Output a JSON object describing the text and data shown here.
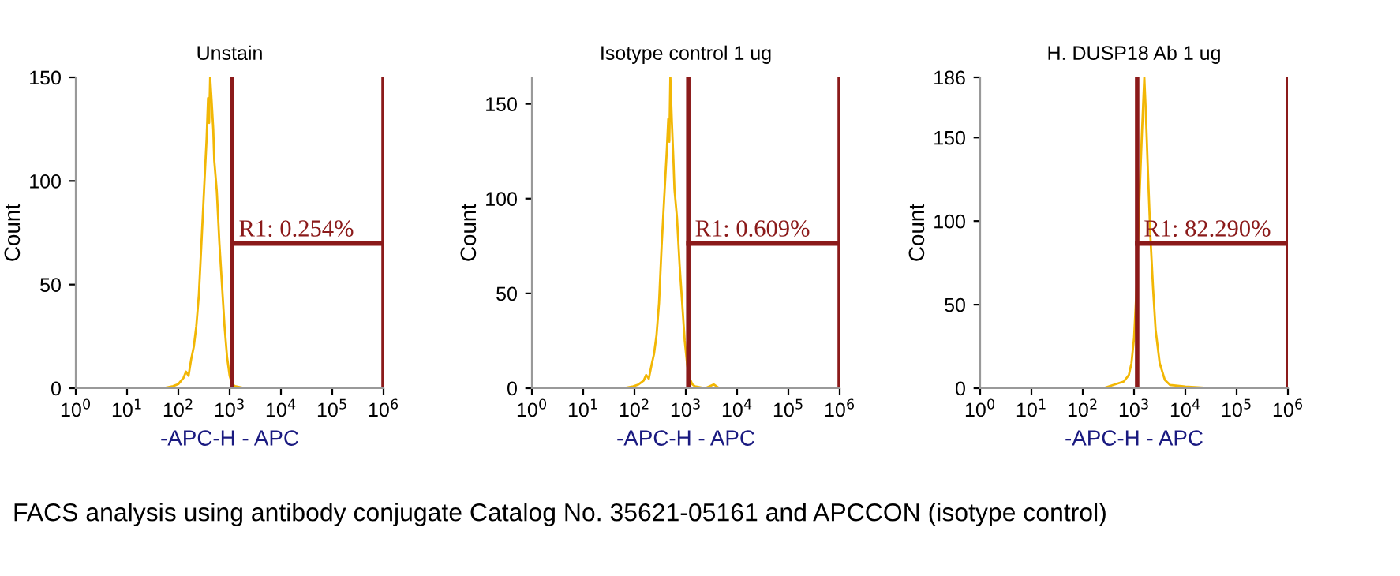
{
  "chart_data": [
    {
      "type": "line",
      "title": "Unstain",
      "xlabel": "-APC-H - APC",
      "ylabel": "Count",
      "log": "x",
      "grid": false,
      "marker": "none",
      "line_style": "solid",
      "xlim": [
        1,
        1000000
      ],
      "xticks": [
        {
          "value": 1,
          "label": "10$^{0}$"
        },
        {
          "value": 10,
          "label": "10$^{1}$"
        },
        {
          "value": 100,
          "label": "10$^{2}$"
        },
        {
          "value": 1000,
          "label": "10$^{3}$"
        },
        {
          "value": 10000,
          "label": "10$^{4}$"
        },
        {
          "value": 100000,
          "label": "10$^{5}$"
        },
        {
          "value": 1000000,
          "label": "10$^{6}$"
        }
      ],
      "ylim": [
        0,
        150
      ],
      "yticks": [
        0,
        50,
        100,
        150
      ],
      "series": [
        {
          "color": "#f2b705",
          "x": [
            50,
            79,
            100,
            126,
            141,
            158,
            178,
            200,
            224,
            251,
            282,
            316,
            355,
            380,
            398,
            417,
            447,
            479,
            501,
            562,
            631,
            708,
            794,
            891,
            1000,
            1122,
            1259,
            1995
          ],
          "values": [
            0,
            1,
            2,
            5,
            8,
            6,
            14,
            20,
            30,
            45,
            70,
            95,
            120,
            140,
            128,
            150,
            138,
            125,
            110,
            95,
            70,
            50,
            30,
            15,
            6,
            2,
            1,
            0
          ]
        }
      ],
      "ref_lines": [
        {
          "axis": "x",
          "value": 1120,
          "color": "#8b1a1a"
        },
        {
          "axis": "x",
          "value": 1000000,
          "color": "#8b1a1a"
        }
      ],
      "annotations": [
        "R1: 0.254%",
        "FACS analysis using antibody conjugate Catalog No. 35621-05161 and APCCON (isotype control)"
      ]
    },
    {
      "type": "line",
      "title": "Isotype control 1 ug",
      "xlabel": "-APC-H - APC",
      "ylabel": "Count",
      "log": "x",
      "grid": false,
      "marker": "none",
      "line_style": "solid",
      "xlim": [
        1,
        1000000
      ],
      "xticks": [
        {
          "value": 1,
          "label": "10$^{0}$"
        },
        {
          "value": 10,
          "label": "10$^{1}$"
        },
        {
          "value": 100,
          "label": "10$^{2}$"
        },
        {
          "value": 1000,
          "label": "10$^{3}$"
        },
        {
          "value": 10000,
          "label": "10$^{4}$"
        },
        {
          "value": 100000,
          "label": "10$^{5}$"
        },
        {
          "value": 1000000,
          "label": "10$^{6}$"
        }
      ],
      "ylim": [
        0,
        164
      ],
      "yticks": [
        0,
        50,
        100,
        150
      ],
      "series": [
        {
          "color": "#f2b705",
          "x": [
            60,
            95,
            120,
            151,
            169,
            190,
            214,
            240,
            269,
            301,
            338,
            379,
            426,
            456,
            478,
            500,
            536,
            575,
            601,
            674,
            757,
            850,
            953,
            1069,
            1200,
            1346,
            1511,
            2394,
            3500,
            4500
          ],
          "values": [
            0,
            1,
            2,
            4,
            7,
            5,
            12,
            18,
            28,
            45,
            75,
            100,
            125,
            142,
            130,
            164,
            140,
            120,
            105,
            90,
            65,
            45,
            25,
            12,
            5,
            2,
            1,
            0,
            2,
            0
          ]
        }
      ],
      "ref_lines": [
        {
          "axis": "x",
          "value": 1120,
          "color": "#8b1a1a"
        },
        {
          "axis": "x",
          "value": 1000000,
          "color": "#8b1a1a"
        }
      ],
      "annotations": [
        "R1: 0.609%"
      ]
    },
    {
      "type": "line",
      "title": "H. DUSP18 Ab 1 ug",
      "xlabel": "-APC-H - APC",
      "ylabel": "Count",
      "log": "x",
      "grid": false,
      "marker": "none",
      "line_style": "solid",
      "xlim": [
        1,
        1000000
      ],
      "xticks": [
        {
          "value": 1,
          "label": "10$^{0}$"
        },
        {
          "value": 10,
          "label": "10$^{1}$"
        },
        {
          "value": 100,
          "label": "10$^{2}$"
        },
        {
          "value": 1000,
          "label": "10$^{3}$"
        },
        {
          "value": 10000,
          "label": "10$^{4}$"
        },
        {
          "value": 100000,
          "label": "10$^{5}$"
        },
        {
          "value": 1000000,
          "label": "10$^{6}$"
        }
      ],
      "ylim": [
        0,
        186
      ],
      "yticks": [
        0,
        50,
        100,
        150,
        186
      ],
      "series": [
        {
          "color": "#f2b705",
          "x": [
            251,
            398,
            631,
            794,
            891,
            1000,
            1122,
            1259,
            1413,
            1585,
            1698,
            1862,
            2089,
            2344,
            2630,
            3162,
            3981,
            5012,
            10000,
            31623
          ],
          "values": [
            0,
            2,
            4,
            8,
            15,
            30,
            60,
            110,
            150,
            186,
            165,
            130,
            90,
            60,
            35,
            15,
            5,
            2,
            1,
            0
          ]
        }
      ],
      "ref_lines": [
        {
          "axis": "x",
          "value": 1150,
          "color": "#8b1a1a"
        },
        {
          "axis": "x",
          "value": 1000000,
          "color": "#8b1a1a"
        }
      ],
      "annotations": [
        "R1: 82.290%"
      ]
    }
  ]
}
